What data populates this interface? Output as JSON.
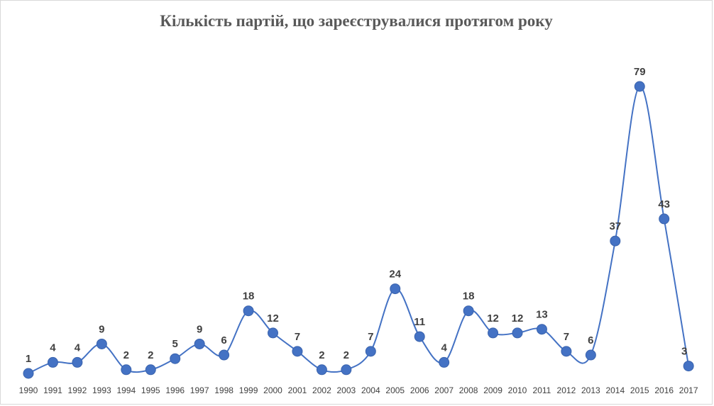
{
  "chart_data": {
    "type": "line",
    "title": "Кількість партій, що зареєструвалися протягом року",
    "xlabel": "",
    "ylabel": "",
    "ylim": [
      0,
      80
    ],
    "grid": false,
    "smooth": true,
    "categories": [
      "1990",
      "1991",
      "1992",
      "1993",
      "1994",
      "1995",
      "1996",
      "1997",
      "1998",
      "1999",
      "2000",
      "2001",
      "2002",
      "2003",
      "2004",
      "2005",
      "2006",
      "2007",
      "2008",
      "2009",
      "2010",
      "2011",
      "2012",
      "2013",
      "2014",
      "2015",
      "2016",
      "2017"
    ],
    "series": [
      {
        "name": "Кількість партій",
        "values": [
          1,
          4,
          4,
          9,
          2,
          2,
          5,
          9,
          6,
          18,
          12,
          7,
          2,
          2,
          7,
          24,
          11,
          4,
          18,
          12,
          12,
          13,
          7,
          6,
          37,
          79,
          43,
          3
        ]
      }
    ],
    "colors": {
      "line": "#4472c4",
      "marker": "#4472c4",
      "label": "#404040",
      "title": "#595959"
    }
  }
}
